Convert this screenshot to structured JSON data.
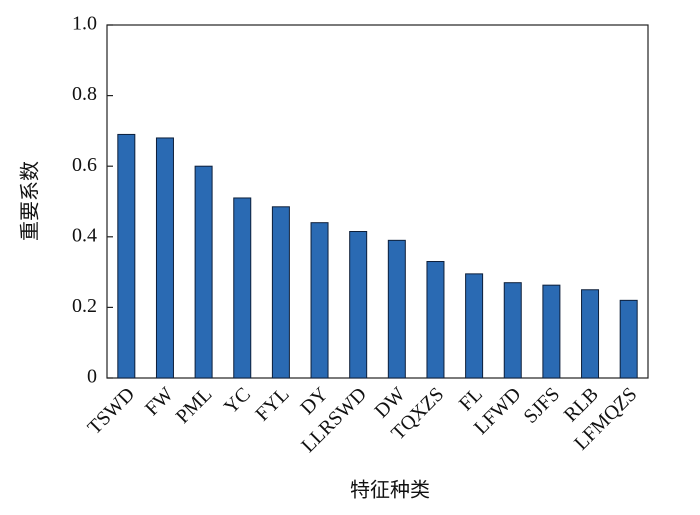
{
  "chart_data": {
    "type": "bar",
    "x_label": "特征种类",
    "y_label": "重要系数",
    "categories": [
      "TSWD",
      "FW",
      "PML",
      "YC",
      "FYL",
      "DY",
      "LLRSWD",
      "DW",
      "TQXZS",
      "FL",
      "LFWD",
      "SJFS",
      "RLB",
      "LFMQZS"
    ],
    "values": [
      0.69,
      0.68,
      0.6,
      0.51,
      0.485,
      0.44,
      0.415,
      0.39,
      0.33,
      0.295,
      0.27,
      0.263,
      0.25,
      0.22
    ],
    "color": "#2a6ab3",
    "ylim": [
      0,
      1
    ],
    "yticks": [
      0,
      0.2,
      0.4,
      0.6,
      0.8,
      {
        "value": 1,
        "label": "1.0"
      }
    ]
  }
}
